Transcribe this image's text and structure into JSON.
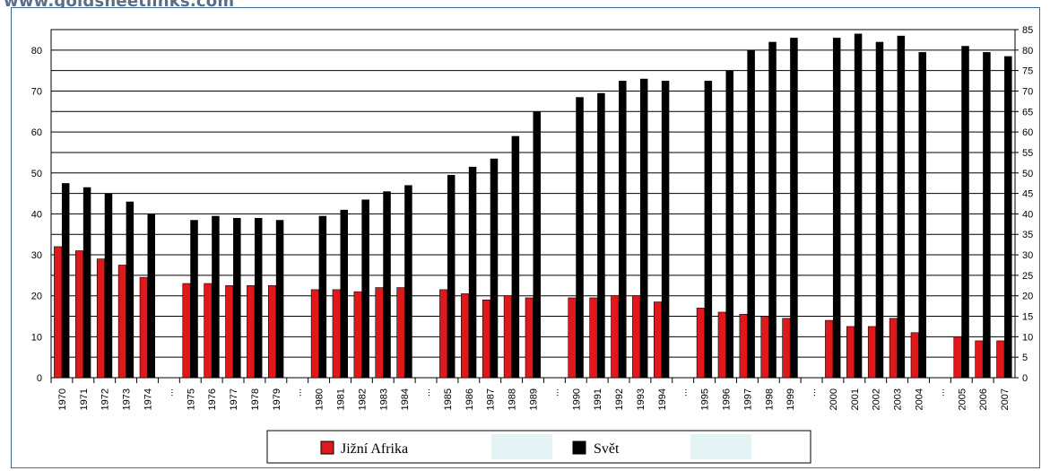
{
  "watermark": "www.goldsheetlinks.com",
  "chart_data": {
    "type": "bar",
    "title": "",
    "xlabel": "",
    "ylabel": "",
    "ylim_left": [
      0,
      85
    ],
    "ylim_right": [
      0,
      85
    ],
    "left_ticks": [
      0,
      10,
      20,
      30,
      40,
      50,
      60,
      70,
      80
    ],
    "right_ticks": [
      0,
      5,
      10,
      15,
      20,
      25,
      30,
      35,
      40,
      45,
      50,
      55,
      60,
      65,
      70,
      75,
      80,
      85
    ],
    "grid": true,
    "legend_placement": "bottom",
    "categories": [
      "1970",
      "1971",
      "1972",
      "1973",
      "1974",
      "...",
      "1975",
      "1976",
      "1977",
      "1978",
      "1979",
      "...",
      "1980",
      "1981",
      "1982",
      "1983",
      "1984",
      "...",
      "1985",
      "1986",
      "1987",
      "1988",
      "1989",
      "...",
      "1990",
      "1991",
      "1992",
      "1993",
      "1994",
      "...",
      "1995",
      "1996",
      "1997",
      "1998",
      "1999",
      "...",
      "2000",
      "2001",
      "2002",
      "2003",
      "2004",
      "...",
      "2005",
      "2006",
      "2007"
    ],
    "series": [
      {
        "name": "Jižní Afrika",
        "color": "#e0181c",
        "values": [
          32,
          31,
          29,
          27.5,
          24.5,
          null,
          23,
          23,
          22.5,
          22.5,
          22.5,
          null,
          21.5,
          21.5,
          21,
          22,
          22,
          null,
          21.5,
          20.5,
          19,
          20,
          19.5,
          null,
          19.5,
          19.5,
          20,
          20,
          18.5,
          null,
          17,
          16,
          15.5,
          15,
          14.5,
          null,
          14,
          12.5,
          12.5,
          14.5,
          11,
          null,
          10,
          9,
          9
        ]
      },
      {
        "name": "Svět",
        "color": "#000000",
        "values": [
          47.5,
          46.5,
          45,
          43,
          40,
          null,
          38.5,
          39.5,
          39,
          39,
          38.5,
          null,
          39.5,
          41,
          43.5,
          45.5,
          47,
          null,
          49.5,
          51.5,
          53.5,
          59,
          65,
          null,
          68.5,
          69.5,
          72.5,
          73,
          72.5,
          null,
          72.5,
          75,
          80,
          82,
          83,
          null,
          83,
          84,
          82,
          83.5,
          79.5,
          null,
          81,
          79.5,
          78.5
        ]
      }
    ]
  }
}
